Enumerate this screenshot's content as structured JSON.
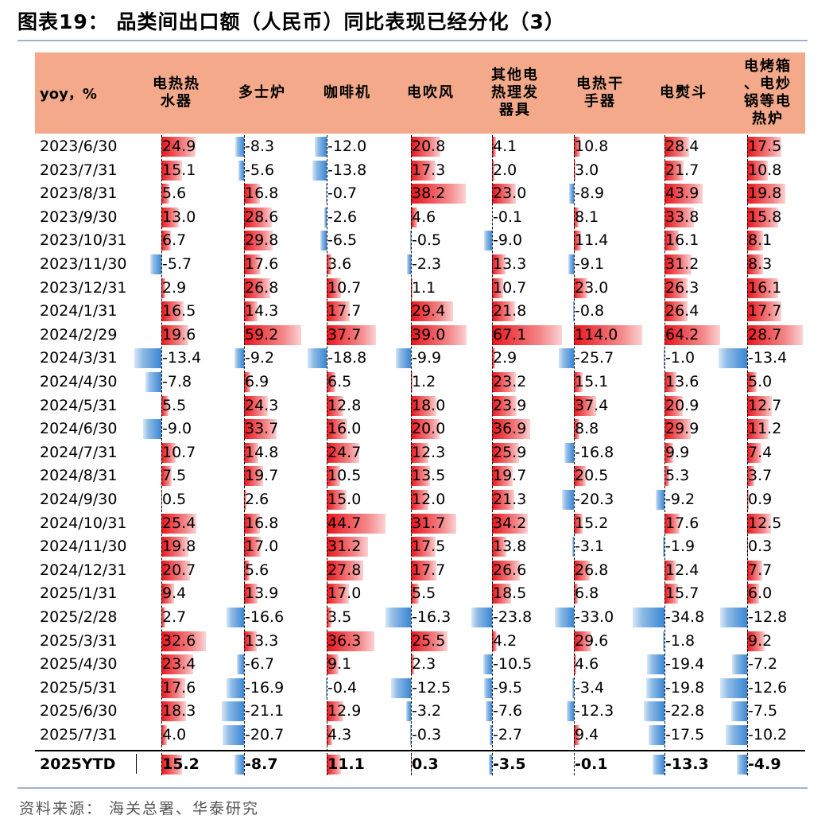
{
  "title": "图表19： 品类间出口额（人民币）同比表现已经分化（3）",
  "source": "资料来源：  海关总署、华泰研究",
  "colors": {
    "header_bg": "#f3a98a",
    "positive": "#e8151b",
    "negative": "#3a86d4"
  },
  "chart_data": {
    "type": "table",
    "subtype": "data-bar table",
    "header_first": "yoy，%",
    "columns": [
      "电热热\n水器",
      "多士炉",
      "咖啡机",
      "电吹风",
      "其他电\n热理发\n器具",
      "电热干\n手器",
      "电熨斗",
      "电烤箱\n、电炒\n锅等电\n热炉"
    ],
    "rows": [
      {
        "label": "2023/6/30",
        "values": [
          24.9,
          -8.3,
          -12.0,
          20.8,
          4.1,
          10.8,
          28.4,
          17.5
        ]
      },
      {
        "label": "2023/7/31",
        "values": [
          15.1,
          -5.6,
          -13.8,
          17.3,
          2.0,
          3.0,
          21.7,
          10.8
        ]
      },
      {
        "label": "2023/8/31",
        "values": [
          5.6,
          16.8,
          -0.7,
          38.2,
          23.0,
          -8.9,
          43.9,
          19.8
        ]
      },
      {
        "label": "2023/9/30",
        "values": [
          13.0,
          28.6,
          -2.6,
          4.6,
          -0.1,
          8.1,
          33.8,
          15.8
        ]
      },
      {
        "label": "2023/10/31",
        "values": [
          6.7,
          29.8,
          -6.5,
          -0.5,
          -9.0,
          11.4,
          16.1,
          8.1
        ]
      },
      {
        "label": "2023/11/30",
        "values": [
          -5.7,
          17.6,
          3.6,
          -2.3,
          13.3,
          -9.1,
          31.2,
          8.3
        ]
      },
      {
        "label": "2023/12/31",
        "values": [
          2.9,
          26.8,
          10.7,
          1.1,
          10.7,
          23.0,
          26.3,
          16.1
        ]
      },
      {
        "label": "2024/1/31",
        "values": [
          16.5,
          14.3,
          17.7,
          29.4,
          21.8,
          -0.8,
          26.4,
          17.7
        ]
      },
      {
        "label": "2024/2/29",
        "values": [
          19.6,
          59.2,
          37.7,
          39.0,
          67.1,
          114.0,
          64.2,
          28.7
        ]
      },
      {
        "label": "2024/3/31",
        "values": [
          -13.4,
          -9.2,
          -18.8,
          -9.9,
          2.9,
          -25.7,
          -1.0,
          -13.4
        ]
      },
      {
        "label": "2024/4/30",
        "values": [
          -7.8,
          6.9,
          6.5,
          1.2,
          23.2,
          15.1,
          13.6,
          5.0
        ]
      },
      {
        "label": "2024/5/31",
        "values": [
          5.5,
          24.3,
          12.8,
          18.0,
          23.9,
          37.4,
          20.9,
          12.7
        ]
      },
      {
        "label": "2024/6/30",
        "values": [
          -9.0,
          33.7,
          16.0,
          20.0,
          36.9,
          8.8,
          29.9,
          11.2
        ]
      },
      {
        "label": "2024/7/31",
        "values": [
          10.7,
          14.8,
          24.7,
          12.3,
          25.9,
          -16.8,
          9.9,
          7.4
        ]
      },
      {
        "label": "2024/8/31",
        "values": [
          7.5,
          19.7,
          10.5,
          13.5,
          19.7,
          20.5,
          5.3,
          3.7
        ]
      },
      {
        "label": "2024/9/30",
        "values": [
          0.5,
          2.6,
          15.0,
          12.0,
          21.3,
          -20.3,
          -9.2,
          0.9
        ]
      },
      {
        "label": "2024/10/31",
        "values": [
          25.4,
          16.8,
          44.7,
          31.7,
          34.2,
          15.2,
          17.6,
          12.5
        ]
      },
      {
        "label": "2024/11/30",
        "values": [
          19.8,
          17.0,
          31.2,
          17.5,
          13.8,
          -3.1,
          -1.9,
          0.3
        ]
      },
      {
        "label": "2024/12/31",
        "values": [
          20.7,
          5.6,
          27.8,
          17.7,
          26.6,
          26.8,
          12.4,
          7.7
        ]
      },
      {
        "label": "2025/1/31",
        "values": [
          9.4,
          13.9,
          17.0,
          5.5,
          18.5,
          6.8,
          15.7,
          6.0
        ]
      },
      {
        "label": "2025/2/28",
        "values": [
          2.7,
          -16.6,
          3.5,
          -16.3,
          -23.8,
          -33.0,
          -34.8,
          -12.8
        ]
      },
      {
        "label": "2025/3/31",
        "values": [
          32.6,
          13.3,
          36.3,
          25.5,
          4.2,
          29.6,
          -1.8,
          9.2
        ]
      },
      {
        "label": "2025/4/30",
        "values": [
          23.4,
          -6.7,
          9.1,
          2.3,
          -10.5,
          4.6,
          -19.4,
          -7.2
        ]
      },
      {
        "label": "2025/5/31",
        "values": [
          17.6,
          -16.9,
          -0.4,
          -12.5,
          -9.5,
          -3.4,
          -19.8,
          -12.6
        ]
      },
      {
        "label": "2025/6/30",
        "values": [
          18.3,
          -21.1,
          12.9,
          -3.2,
          -7.6,
          -12.3,
          -22.8,
          -7.5
        ]
      },
      {
        "label": "2025/7/31",
        "values": [
          4.0,
          -20.7,
          4.3,
          -0.3,
          -2.7,
          9.4,
          -17.5,
          -10.2
        ]
      }
    ],
    "summary_row": {
      "label": "2025YTD",
      "values": [
        15.2,
        -8.7,
        11.1,
        0.3,
        -3.5,
        -0.1,
        -13.3,
        -4.9
      ]
    }
  }
}
